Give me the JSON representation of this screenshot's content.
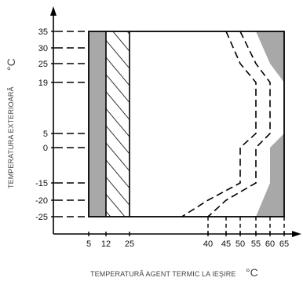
{
  "chart_data": {
    "type": "operating-range diagram",
    "x_axis": {
      "label": "TEMPERATURĂ AGENT TERMIC LA IEȘIRE",
      "unit": "°C",
      "ticks": [
        "5",
        "12",
        "25",
        "40",
        "45",
        "50",
        "55",
        "60",
        "65"
      ]
    },
    "y_axis": {
      "label": "TEMPERATURA EXTERIOARĂ",
      "unit": "°C",
      "ticks": [
        "35",
        "30",
        "25",
        "19",
        "5",
        "0",
        "-15",
        "-20",
        "-25"
      ]
    },
    "regions": {
      "gray_band_x": [
        5,
        12
      ],
      "hatched_band_x": [
        12,
        25
      ],
      "operating_box": {
        "x": [
          5,
          65
        ],
        "y": [
          -25,
          35
        ]
      },
      "right_gray_boundary": [
        [
          55,
          35
        ],
        [
          60,
          25
        ],
        [
          65,
          19
        ],
        [
          65,
          5
        ],
        [
          60,
          0
        ],
        [
          60,
          -15
        ],
        [
          55,
          -25
        ]
      ],
      "outer_dashed_boundary": [
        [
          50,
          35
        ],
        [
          55,
          25
        ],
        [
          60,
          19
        ],
        [
          60,
          5
        ],
        [
          55,
          0
        ],
        [
          55,
          -15
        ],
        [
          45,
          -20
        ],
        [
          40,
          -25
        ]
      ],
      "inner_dashed_boundary": [
        [
          45,
          35
        ],
        [
          50,
          25
        ],
        [
          55,
          19
        ],
        [
          55,
          5
        ],
        [
          50,
          0
        ],
        [
          50,
          -15
        ],
        [
          40,
          -20
        ],
        [
          35,
          -25
        ]
      ]
    },
    "colors": {
      "gray": "#a8a8a8",
      "line": "#000000"
    }
  }
}
